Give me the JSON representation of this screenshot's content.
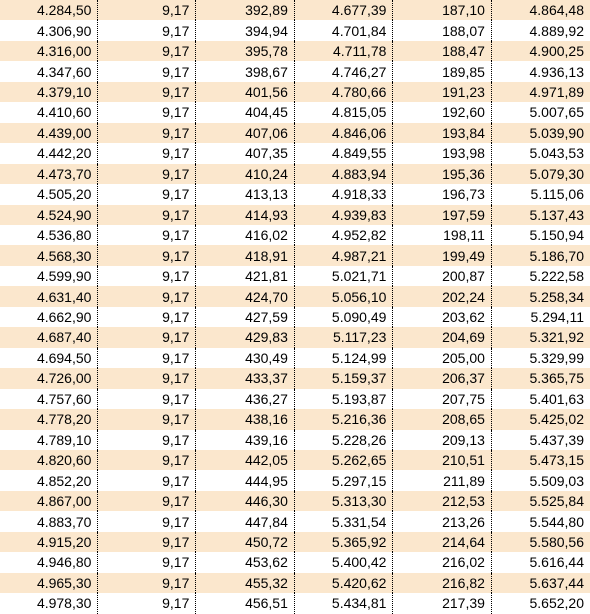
{
  "table": {
    "background_colors": {
      "odd": "#fbe7cd",
      "even": "#ffffff"
    },
    "border_color": "#000000",
    "text_color": "#000000",
    "font_size": 14,
    "col_widths_pct": [
      16.6,
      16.6,
      16.7,
      16.7,
      16.7,
      16.7
    ],
    "rows": [
      [
        "4.284,50",
        "9,17",
        "392,89",
        "4.677,39",
        "187,10",
        "4.864,48"
      ],
      [
        "4.306,90",
        "9,17",
        "394,94",
        "4.701,84",
        "188,07",
        "4.889,92"
      ],
      [
        "4.316,00",
        "9,17",
        "395,78",
        "4.711,78",
        "188,47",
        "4.900,25"
      ],
      [
        "4.347,60",
        "9,17",
        "398,67",
        "4.746,27",
        "189,85",
        "4.936,13"
      ],
      [
        "4.379,10",
        "9,17",
        "401,56",
        "4.780,66",
        "191,23",
        "4.971,89"
      ],
      [
        "4.410,60",
        "9,17",
        "404,45",
        "4.815,05",
        "192,60",
        "5.007,65"
      ],
      [
        "4.439,00",
        "9,17",
        "407,06",
        "4.846,06",
        "193,84",
        "5.039,90"
      ],
      [
        "4.442,20",
        "9,17",
        "407,35",
        "4.849,55",
        "193,98",
        "5.043,53"
      ],
      [
        "4.473,70",
        "9,17",
        "410,24",
        "4.883,94",
        "195,36",
        "5.079,30"
      ],
      [
        "4.505,20",
        "9,17",
        "413,13",
        "4.918,33",
        "196,73",
        "5.115,06"
      ],
      [
        "4.524,90",
        "9,17",
        "414,93",
        "4.939,83",
        "197,59",
        "5.137,43"
      ],
      [
        "4.536,80",
        "9,17",
        "416,02",
        "4.952,82",
        "198,11",
        "5.150,94"
      ],
      [
        "4.568,30",
        "9,17",
        "418,91",
        "4.987,21",
        "199,49",
        "5.186,70"
      ],
      [
        "4.599,90",
        "9,17",
        "421,81",
        "5.021,71",
        "200,87",
        "5.222,58"
      ],
      [
        "4.631,40",
        "9,17",
        "424,70",
        "5.056,10",
        "202,24",
        "5.258,34"
      ],
      [
        "4.662,90",
        "9,17",
        "427,59",
        "5.090,49",
        "203,62",
        "5.294,11"
      ],
      [
        "4.687,40",
        "9,17",
        "429,83",
        "5.117,23",
        "204,69",
        "5.321,92"
      ],
      [
        "4.694,50",
        "9,17",
        "430,49",
        "5.124,99",
        "205,00",
        "5.329,99"
      ],
      [
        "4.726,00",
        "9,17",
        "433,37",
        "5.159,37",
        "206,37",
        "5.365,75"
      ],
      [
        "4.757,60",
        "9,17",
        "436,27",
        "5.193,87",
        "207,75",
        "5.401,63"
      ],
      [
        "4.778,20",
        "9,17",
        "438,16",
        "5.216,36",
        "208,65",
        "5.425,02"
      ],
      [
        "4.789,10",
        "9,17",
        "439,16",
        "5.228,26",
        "209,13",
        "5.437,39"
      ],
      [
        "4.820,60",
        "9,17",
        "442,05",
        "5.262,65",
        "210,51",
        "5.473,15"
      ],
      [
        "4.852,20",
        "9,17",
        "444,95",
        "5.297,15",
        "211,89",
        "5.509,03"
      ],
      [
        "4.867,00",
        "9,17",
        "446,30",
        "5.313,30",
        "212,53",
        "5.525,84"
      ],
      [
        "4.883,70",
        "9,17",
        "447,84",
        "5.331,54",
        "213,26",
        "5.544,80"
      ],
      [
        "4.915,20",
        "9,17",
        "450,72",
        "5.365,92",
        "214,64",
        "5.580,56"
      ],
      [
        "4.946,80",
        "9,17",
        "453,62",
        "5.400,42",
        "216,02",
        "5.616,44"
      ],
      [
        "4.965,30",
        "9,17",
        "455,32",
        "5.420,62",
        "216,82",
        "5.637,44"
      ],
      [
        "4.978,30",
        "9,17",
        "456,51",
        "5.434,81",
        "217,39",
        "5.652,20"
      ]
    ]
  }
}
